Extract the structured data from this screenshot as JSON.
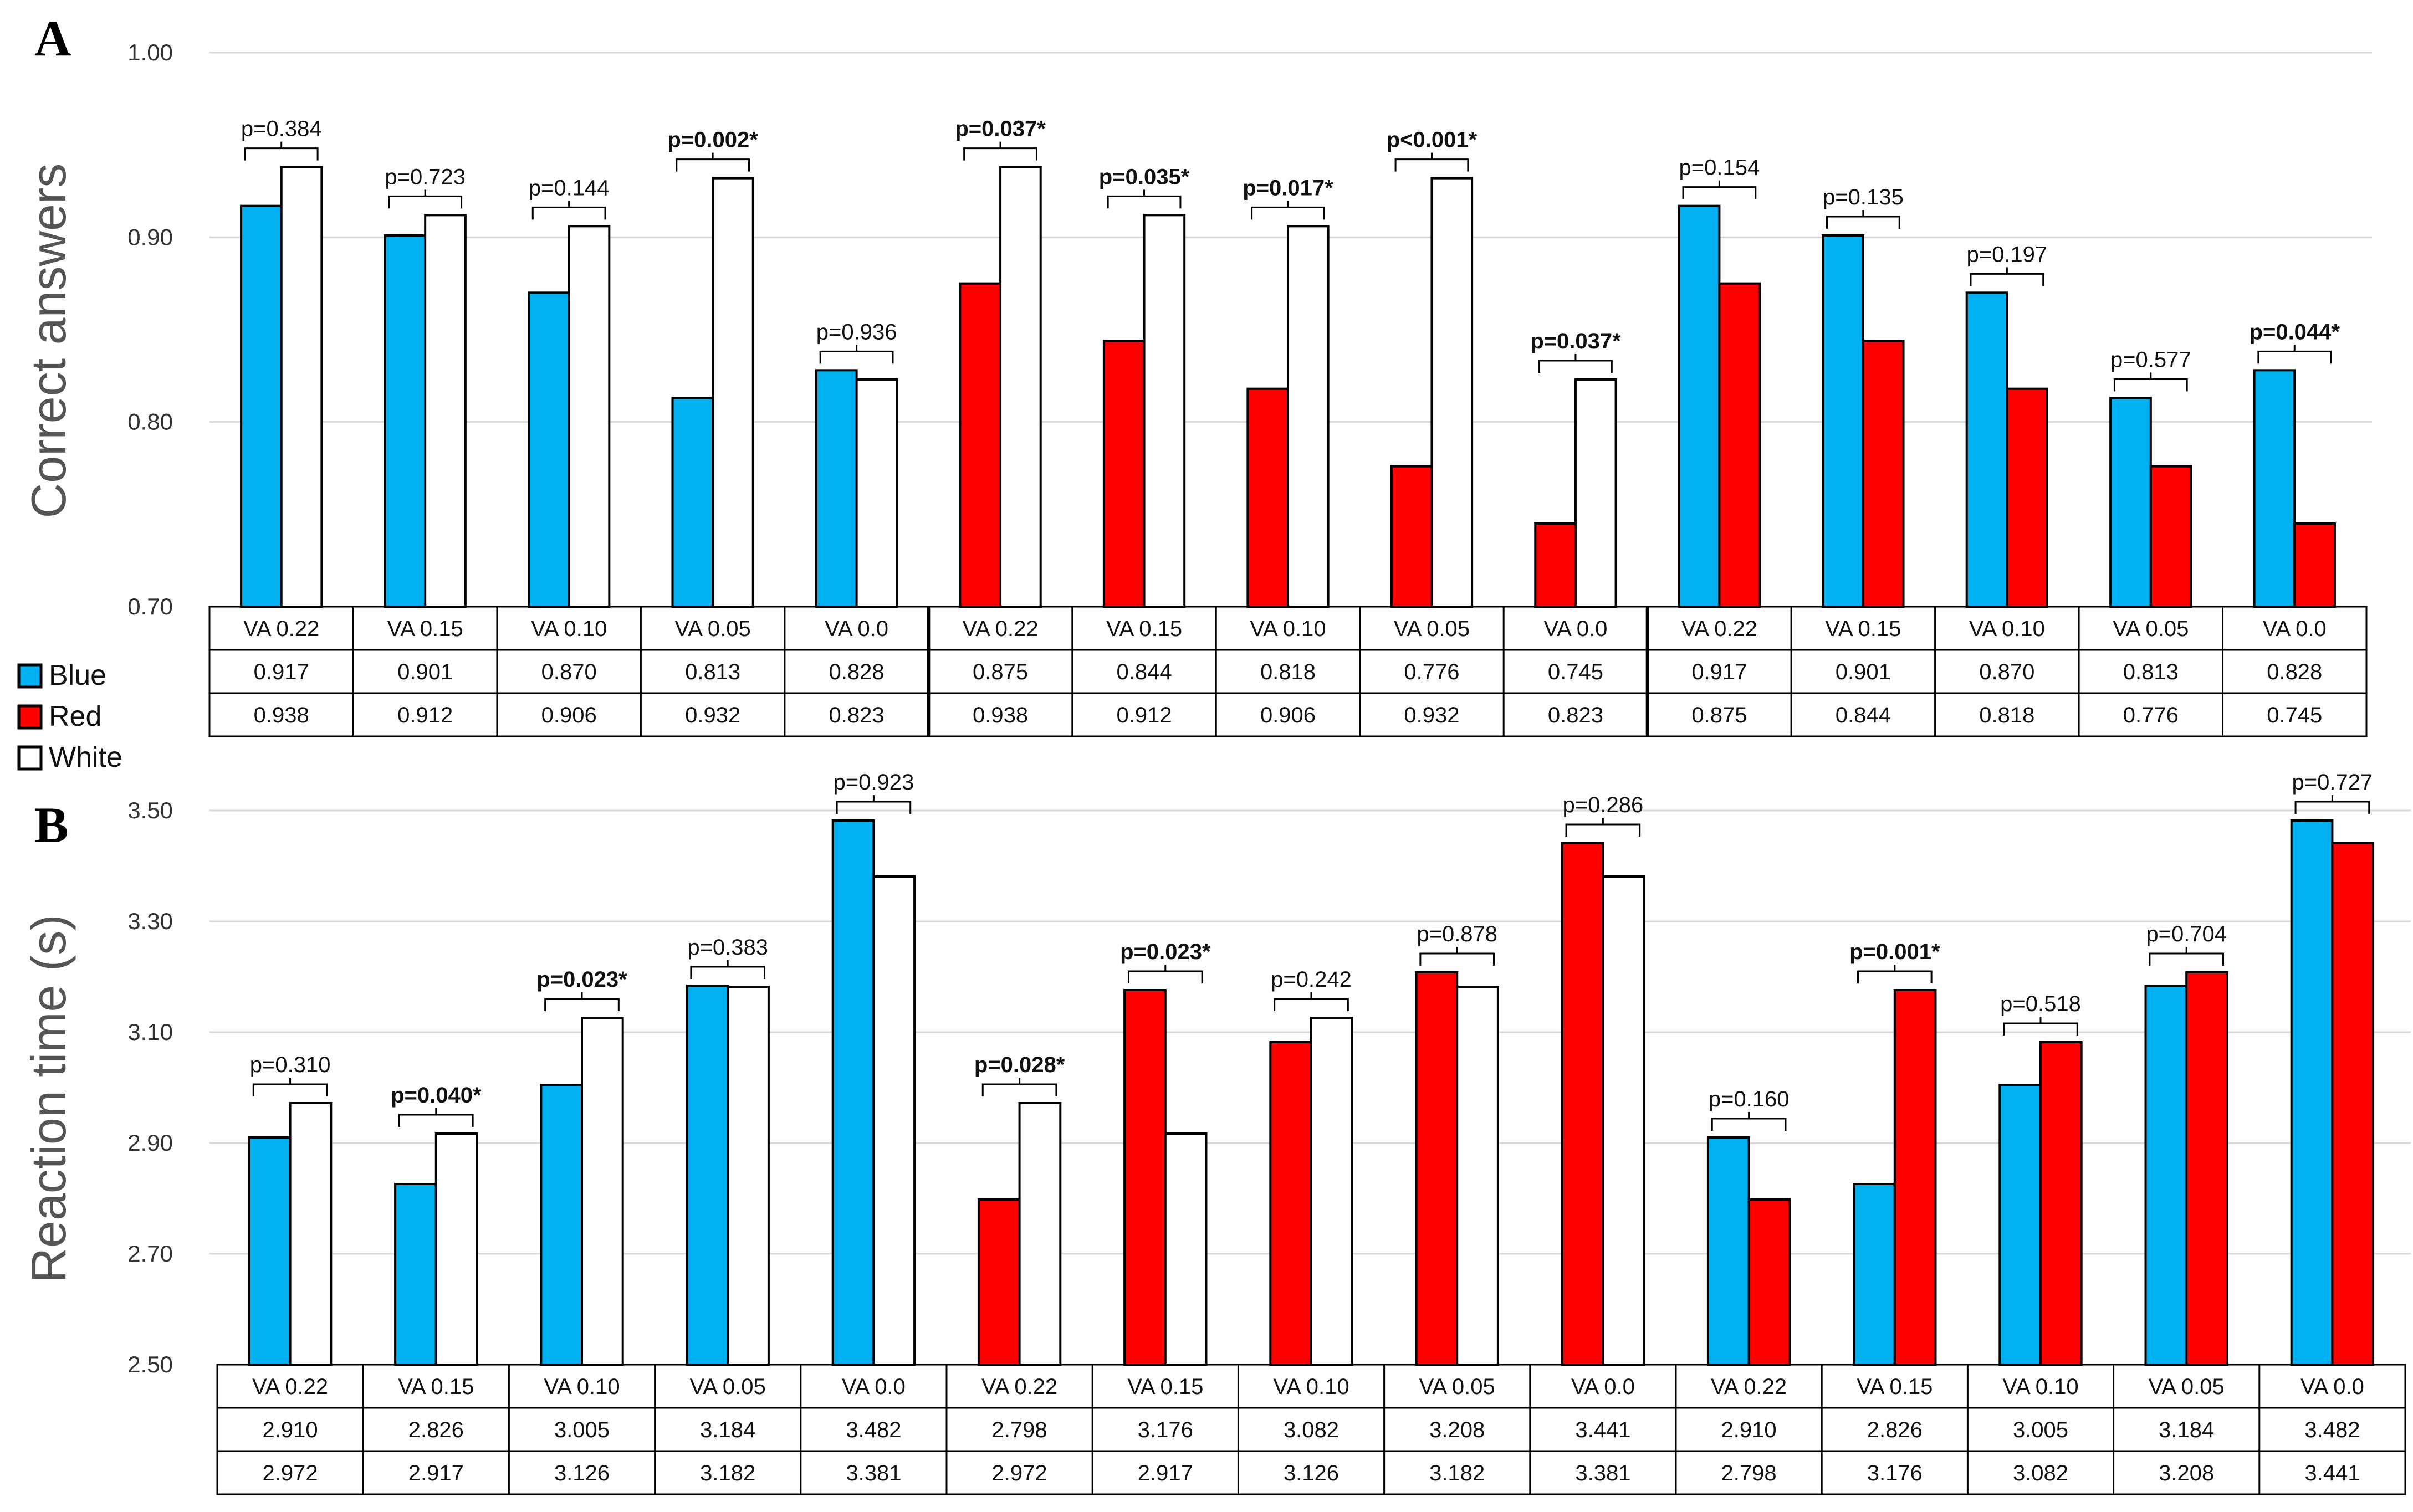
{
  "colors": {
    "Blue": "#00B0F0",
    "Red": "#FF0000",
    "White": "#FFFFFF"
  },
  "legend": [
    {
      "name": "Blue",
      "color": "#00B0F0"
    },
    {
      "name": "Red",
      "color": "#FF0000"
    },
    {
      "name": "White",
      "color": "#FFFFFF"
    }
  ],
  "chart_data": [
    {
      "type": "bar",
      "panel": "A",
      "ylabel": "Correct answers",
      "ylim": [
        0.7,
        1.0
      ],
      "yticks": [
        "0.70",
        "0.80",
        "0.90",
        "1.00"
      ],
      "groups": [
        {
          "label": "VA 0.22",
          "series": [
            "Blue",
            "White"
          ],
          "values": [
            0.917,
            0.938
          ],
          "values_text": [
            "0.917",
            "0.938"
          ],
          "p": "p=0.384",
          "sig": false
        },
        {
          "label": "VA 0.15",
          "series": [
            "Blue",
            "White"
          ],
          "values": [
            0.901,
            0.912
          ],
          "values_text": [
            "0.901",
            "0.912"
          ],
          "p": "p=0.723",
          "sig": false
        },
        {
          "label": "VA 0.10",
          "series": [
            "Blue",
            "White"
          ],
          "values": [
            0.87,
            0.906
          ],
          "values_text": [
            "0.870",
            "0.906"
          ],
          "p": "p=0.144",
          "sig": false
        },
        {
          "label": "VA 0.05",
          "series": [
            "Blue",
            "White"
          ],
          "values": [
            0.813,
            0.932
          ],
          "values_text": [
            "0.813",
            "0.932"
          ],
          "p": "p=0.002*",
          "sig": true
        },
        {
          "label": "VA 0.0",
          "series": [
            "Blue",
            "White"
          ],
          "values": [
            0.828,
            0.823
          ],
          "values_text": [
            "0.828",
            "0.823"
          ],
          "p": "p=0.936",
          "sig": false
        },
        {
          "label": "VA 0.22",
          "series": [
            "Red",
            "White"
          ],
          "values": [
            0.875,
            0.938
          ],
          "values_text": [
            "0.875",
            "0.938"
          ],
          "p": "p=0.037*",
          "sig": true
        },
        {
          "label": "VA 0.15",
          "series": [
            "Red",
            "White"
          ],
          "values": [
            0.844,
            0.912
          ],
          "values_text": [
            "0.844",
            "0.912"
          ],
          "p": "p=0.035*",
          "sig": true
        },
        {
          "label": "VA 0.10",
          "series": [
            "Red",
            "White"
          ],
          "values": [
            0.818,
            0.906
          ],
          "values_text": [
            "0.818",
            "0.906"
          ],
          "p": "p=0.017*",
          "sig": true
        },
        {
          "label": "VA 0.05",
          "series": [
            "Red",
            "White"
          ],
          "values": [
            0.776,
            0.932
          ],
          "values_text": [
            "0.776",
            "0.932"
          ],
          "p": "p<0.001*",
          "sig": true
        },
        {
          "label": "VA 0.0",
          "series": [
            "Red",
            "White"
          ],
          "values": [
            0.745,
            0.823
          ],
          "values_text": [
            "0.745",
            "0.823"
          ],
          "p": "p=0.037*",
          "sig": true
        },
        {
          "label": "VA 0.22",
          "series": [
            "Blue",
            "Red"
          ],
          "values": [
            0.917,
            0.875
          ],
          "values_text": [
            "0.917",
            "0.875"
          ],
          "p": "p=0.154",
          "sig": false
        },
        {
          "label": "VA 0.15",
          "series": [
            "Blue",
            "Red"
          ],
          "values": [
            0.901,
            0.844
          ],
          "values_text": [
            "0.901",
            "0.844"
          ],
          "p": "p=0.135",
          "sig": false
        },
        {
          "label": "VA 0.10",
          "series": [
            "Blue",
            "Red"
          ],
          "values": [
            0.87,
            0.818
          ],
          "values_text": [
            "0.870",
            "0.818"
          ],
          "p": "p=0.197",
          "sig": false
        },
        {
          "label": "VA 0.05",
          "series": [
            "Blue",
            "Red"
          ],
          "values": [
            0.813,
            0.776
          ],
          "values_text": [
            "0.813",
            "0.776"
          ],
          "p": "p=0.577",
          "sig": false
        },
        {
          "label": "VA 0.0",
          "series": [
            "Blue",
            "Red"
          ],
          "values": [
            0.828,
            0.745
          ],
          "values_text": [
            "0.828",
            "0.745"
          ],
          "p": "p=0.044*",
          "sig": true
        }
      ]
    },
    {
      "type": "bar",
      "panel": "B",
      "ylabel": "Reaction time (s)",
      "ylim": [
        2.5,
        3.5
      ],
      "yticks": [
        "2.50",
        "2.70",
        "2.90",
        "3.10",
        "3.30",
        "3.50"
      ],
      "groups": [
        {
          "label": "VA 0.22",
          "series": [
            "Blue",
            "White"
          ],
          "values": [
            2.91,
            2.972
          ],
          "values_text": [
            "2.910",
            "2.972"
          ],
          "p": "p=0.310",
          "sig": false
        },
        {
          "label": "VA 0.15",
          "series": [
            "Blue",
            "White"
          ],
          "values": [
            2.826,
            2.917
          ],
          "values_text": [
            "2.826",
            "2.917"
          ],
          "p": "p=0.040*",
          "sig": true
        },
        {
          "label": "VA 0.10",
          "series": [
            "Blue",
            "White"
          ],
          "values": [
            3.005,
            3.126
          ],
          "values_text": [
            "3.005",
            "3.126"
          ],
          "p": "p=0.023*",
          "sig": true
        },
        {
          "label": "VA 0.05",
          "series": [
            "Blue",
            "White"
          ],
          "values": [
            3.184,
            3.182
          ],
          "values_text": [
            "3.184",
            "3.182"
          ],
          "p": "p=0.383",
          "sig": false
        },
        {
          "label": "VA 0.0",
          "series": [
            "Blue",
            "White"
          ],
          "values": [
            3.482,
            3.381
          ],
          "values_text": [
            "3.482",
            "3.381"
          ],
          "p": "p=0.923",
          "sig": false
        },
        {
          "label": "VA 0.22",
          "series": [
            "Red",
            "White"
          ],
          "values": [
            2.798,
            2.972
          ],
          "values_text": [
            "2.798",
            "2.972"
          ],
          "p": "p=0.028*",
          "sig": true
        },
        {
          "label": "VA 0.15",
          "series": [
            "Red",
            "White"
          ],
          "values": [
            3.176,
            2.917
          ],
          "values_text": [
            "3.176",
            "2.917"
          ],
          "p": "p=0.023*",
          "sig": true
        },
        {
          "label": "VA 0.10",
          "series": [
            "Red",
            "White"
          ],
          "values": [
            3.082,
            3.126
          ],
          "values_text": [
            "3.082",
            "3.126"
          ],
          "p": "p=0.242",
          "sig": false
        },
        {
          "label": "VA 0.05",
          "series": [
            "Red",
            "White"
          ],
          "values": [
            3.208,
            3.182
          ],
          "values_text": [
            "3.208",
            "3.182"
          ],
          "p": "p=0.878",
          "sig": false
        },
        {
          "label": "VA 0.0",
          "series": [
            "Red",
            "White"
          ],
          "values": [
            3.441,
            3.381
          ],
          "values_text": [
            "3.441",
            "3.381"
          ],
          "p": "p=0.286",
          "sig": false
        },
        {
          "label": "VA 0.22",
          "series": [
            "Blue",
            "Red"
          ],
          "values": [
            2.91,
            2.798
          ],
          "values_text": [
            "2.910",
            "2.798"
          ],
          "p": "p=0.160",
          "sig": false
        },
        {
          "label": "VA 0.15",
          "series": [
            "Blue",
            "Red"
          ],
          "values": [
            2.826,
            3.176
          ],
          "values_text": [
            "2.826",
            "3.176"
          ],
          "p": "p=0.001*",
          "sig": true
        },
        {
          "label": "VA 0.10",
          "series": [
            "Blue",
            "Red"
          ],
          "values": [
            3.005,
            3.082
          ],
          "values_text": [
            "3.005",
            "3.082"
          ],
          "p": "p=0.518",
          "sig": false
        },
        {
          "label": "VA 0.05",
          "series": [
            "Blue",
            "Red"
          ],
          "values": [
            3.184,
            3.208
          ],
          "values_text": [
            "3.184",
            "3.208"
          ],
          "p": "p=0.704",
          "sig": false
        },
        {
          "label": "VA 0.0",
          "series": [
            "Blue",
            "Red"
          ],
          "values": [
            3.482,
            3.441
          ],
          "values_text": [
            "3.482",
            "3.441"
          ],
          "p": "p=0.727",
          "sig": false
        }
      ]
    }
  ]
}
